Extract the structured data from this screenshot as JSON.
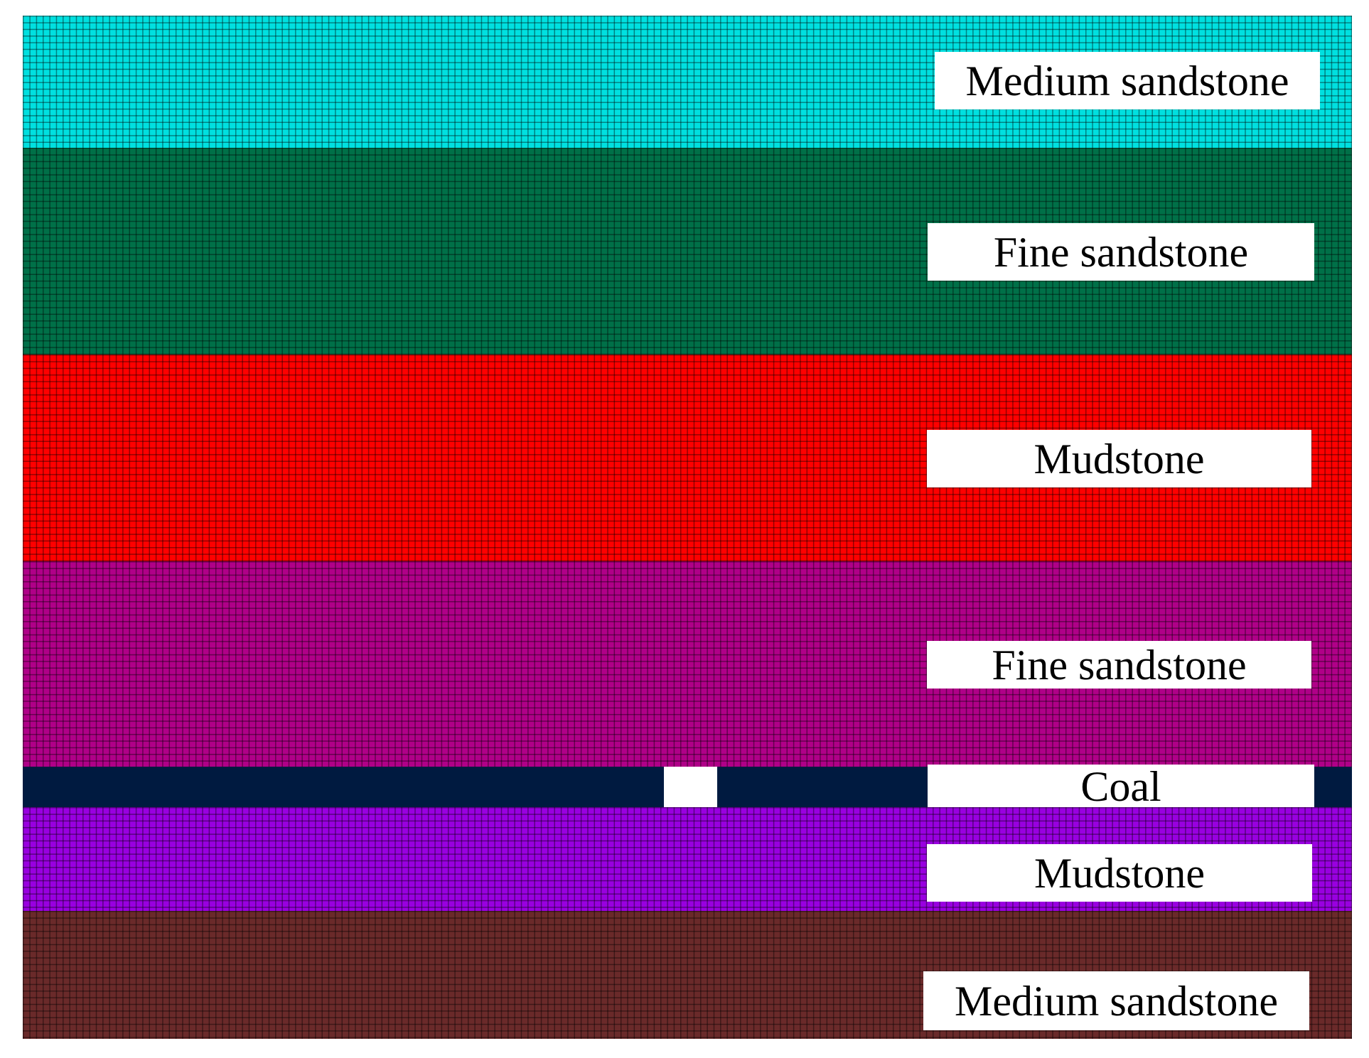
{
  "layers": [
    {
      "name": "Medium sandstone",
      "color": "#00e0e0",
      "mesh": true
    },
    {
      "name": "Fine sandstone",
      "color": "#007048",
      "mesh": true
    },
    {
      "name": "Mudstone",
      "color": "#ff0000",
      "mesh": true
    },
    {
      "name": "Fine sandstone",
      "color": "#b00088",
      "mesh": true
    },
    {
      "name": "Coal",
      "color": "#001a40",
      "mesh": false
    },
    {
      "name": "Mudstone",
      "color": "#9900e0",
      "mesh": true
    },
    {
      "name": "Medium sandstone",
      "color": "#6a2a2a",
      "mesh": true
    }
  ],
  "excavation": {
    "color": "#ffffff"
  }
}
